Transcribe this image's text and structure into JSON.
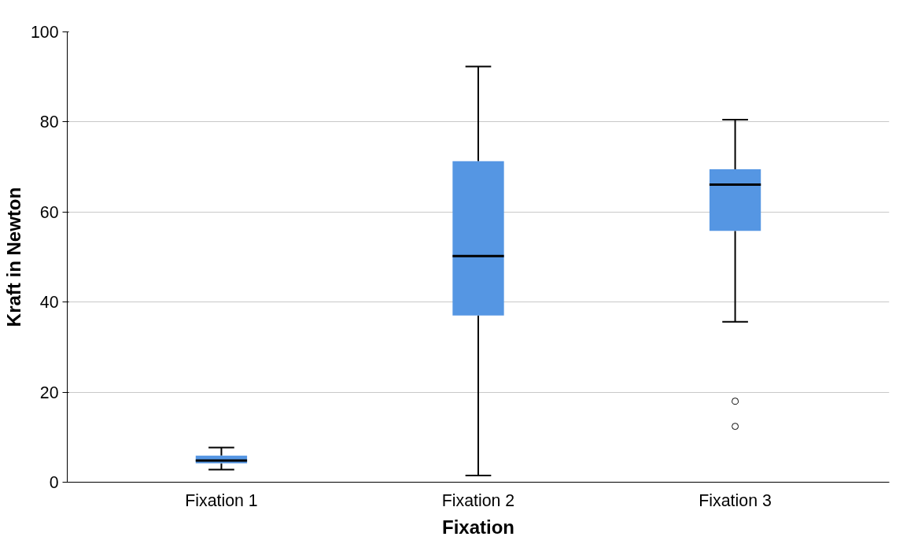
{
  "chart_data": {
    "type": "box",
    "xlabel": "Fixation",
    "ylabel": "Kraft in Newton",
    "categories": [
      "Fixation 1",
      "Fixation 2",
      "Fixation 3"
    ],
    "boxes": [
      {
        "low": 2.8,
        "q1": 4.2,
        "median": 4.8,
        "q3": 5.9,
        "high": 7.7
      },
      {
        "low": 1.5,
        "q1": 37,
        "median": 50.2,
        "q3": 71.3,
        "high": 92.3
      },
      {
        "low": 35.6,
        "q1": 55.8,
        "median": 66.1,
        "q3": 69.5,
        "high": 80.5,
        "outliers": [
          18,
          12.4
        ]
      }
    ],
    "color": "#5596e3",
    "ylim": [
      0,
      100
    ],
    "yticks": [
      0,
      20,
      40,
      60,
      80,
      100
    ],
    "grid": "y"
  }
}
